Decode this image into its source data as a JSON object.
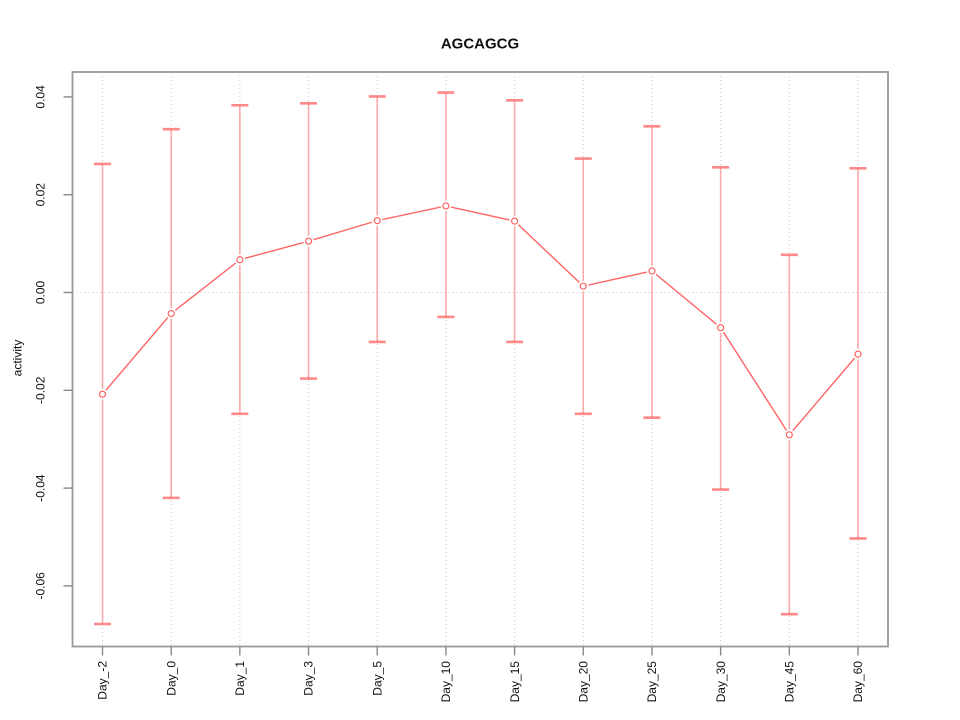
{
  "chart_data": {
    "type": "line",
    "title": "AGCAGCG",
    "xlabel": "",
    "ylabel": "activity",
    "categories": [
      "Day_-2",
      "Day_0",
      "Day_1",
      "Day_3",
      "Day_5",
      "Day_10",
      "Day_15",
      "Day_20",
      "Day_25",
      "Day_30",
      "Day_45",
      "Day_60"
    ],
    "series": [
      {
        "name": "activity",
        "values": [
          -0.0208,
          -0.0043,
          0.0067,
          0.0105,
          0.0147,
          0.0177,
          0.0146,
          0.0013,
          0.0044,
          -0.0072,
          -0.0291,
          -0.0126
        ],
        "error_upper": [
          0.0263,
          0.0334,
          0.0383,
          0.0387,
          0.0401,
          0.0409,
          0.0393,
          0.0274,
          0.034,
          0.0256,
          0.0077,
          0.0254
        ],
        "error_lower": [
          -0.0678,
          -0.042,
          -0.0248,
          -0.0176,
          -0.0101,
          -0.005,
          -0.0101,
          -0.0248,
          -0.0256,
          -0.0403,
          -0.0658,
          -0.0503
        ]
      }
    ],
    "yticks": [
      -0.06,
      -0.04,
      -0.02,
      0.0,
      0.02,
      0.04
    ],
    "ylim": [
      -0.0724,
      0.0451
    ],
    "grid": {
      "horizontal_values": [
        0
      ],
      "vertical": "per-category",
      "style": "dotted"
    },
    "legend": "none",
    "marker": "open-circle",
    "colors": {
      "line": "#FF4A4A",
      "error_bar": "#FF6B6B",
      "grid": "#C9C9C9",
      "frame": "#9A9A9A",
      "tick": "#888888",
      "text": "#111111",
      "background": "#FFFFFF"
    }
  }
}
